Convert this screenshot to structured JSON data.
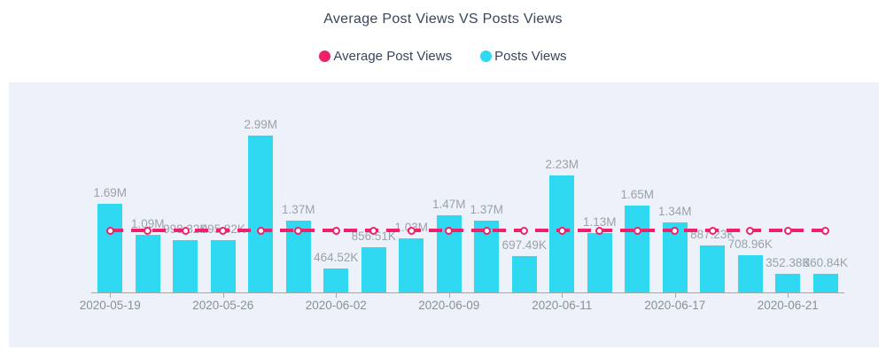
{
  "chart_data": {
    "type": "bar",
    "title": "Average Post Views VS Posts Views",
    "xlabel": "",
    "ylabel": "",
    "grid": false,
    "legend_position": "top",
    "ylim_millions": [
      0,
      3.35
    ],
    "x_tick_labels": [
      "2020-05-19",
      "2020-05-26",
      "2020-06-02",
      "2020-06-09",
      "2020-06-11",
      "2020-06-17",
      "2020-06-21"
    ],
    "x_tick_every": 3,
    "bars": {
      "name": "Posts Views",
      "color": "#30d9f2",
      "values_millions": [
        1.69,
        1.09,
        0.99832,
        0.99582,
        2.99,
        1.37,
        0.46452,
        0.85651,
        1.03,
        1.47,
        1.37,
        0.69749,
        2.23,
        1.13,
        1.65,
        1.34,
        0.88723,
        0.70896,
        0.35238,
        0.36084
      ],
      "labels": [
        "1.69M",
        "1.09M",
        "998.32K",
        "995.82K",
        "2.99M",
        "1.37M",
        "464.52K",
        "856.51K",
        "1.03M",
        "1.47M",
        "1.37M",
        "697.49K",
        "2.23M",
        "1.13M",
        "1.65M",
        "1.34M",
        "887.23K",
        "708.96K",
        "352.38K",
        "360.84K"
      ]
    },
    "average_line": {
      "name": "Average Post Views",
      "color": "#f1206b",
      "style": "dashed",
      "value_millions": 1.18
    }
  },
  "legend": {
    "items": [
      {
        "label": "Average Post Views",
        "color": "#f1206b"
      },
      {
        "label": "Posts Views",
        "color": "#30d9f2"
      }
    ]
  },
  "colors": {
    "panel_background": "#edf1fa",
    "page_background": "#ffffff",
    "title_text": "#39455e",
    "value_label_text": "#9ba1ab",
    "axis_label_text": "#8a9099",
    "axis_line": "#a6a6a6"
  }
}
